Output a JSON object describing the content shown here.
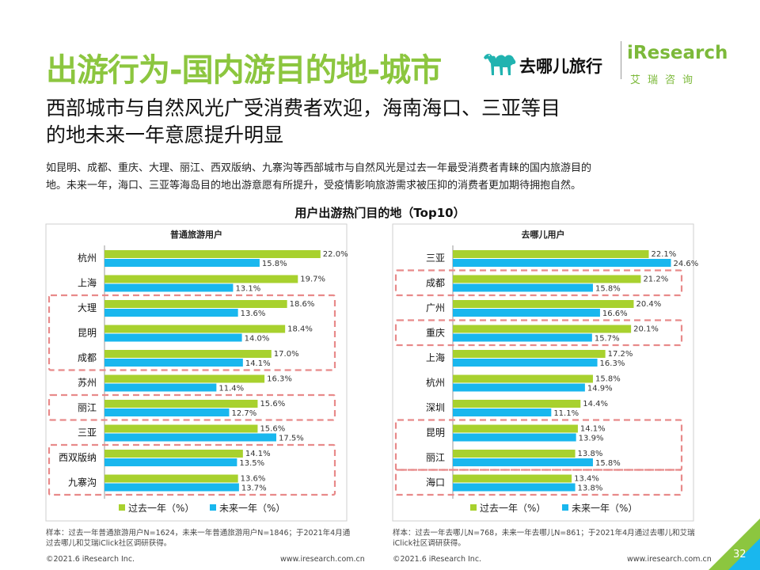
{
  "header": {
    "title": "出游行为-国内游目的地-城市",
    "brand_qunar": "去哪儿旅行",
    "brand_iresearch": "iResearch",
    "brand_iresearch_cn": "艾瑞咨询"
  },
  "headline": {
    "line1": "西部城市与自然风光广受消费者欢迎，海南海口、三亚等目",
    "line2": "的地未来一年意愿提升明显"
  },
  "description": {
    "line1": "如昆明、成都、重庆、大理、丽江、西双版纳、九寨沟等西部城市与自然风光是过去一年最受消费者青睐的国内旅游目的",
    "line2": "地。未来一年，海口、三亚等海岛目的地出游意愿有所提升，受疫情影响旅游需求被压抑的消费者更加期待拥抱自然。"
  },
  "chart_title": "用户出游热门目的地（Top10）",
  "colors": {
    "past": "#a8d12e",
    "future": "#19b7ee",
    "highlight": "#e88a8a",
    "accent": "#8cc63f"
  },
  "chart_data": [
    {
      "type": "bar",
      "orientation": "horizontal",
      "title": "普通旅游用户",
      "categories": [
        "杭州",
        "上海",
        "大理",
        "昆明",
        "成都",
        "苏州",
        "丽江",
        "三亚",
        "西双版纳",
        "九寨沟"
      ],
      "series": [
        {
          "name": "过去一年（%）",
          "values": [
            22.0,
            19.7,
            18.6,
            18.4,
            17.0,
            16.3,
            15.6,
            15.6,
            14.1,
            13.6
          ]
        },
        {
          "name": "未来一年（%）",
          "values": [
            15.8,
            13.1,
            13.6,
            14.0,
            14.1,
            11.4,
            12.7,
            17.5,
            13.5,
            13.7
          ]
        }
      ],
      "value_labels_past": [
        "22.0%",
        "19.7%",
        "18.6%",
        "18.4%",
        "17.0%",
        "16.3%",
        "15.6%",
        "15.6%",
        "14.1%",
        "13.6%"
      ],
      "value_labels_future": [
        "15.8%",
        "13.1%",
        "13.6%",
        "14.0%",
        "14.1%",
        "11.4%",
        "12.7%",
        "17.5%",
        "13.5%",
        "13.7%"
      ],
      "highlighted_groups": [
        [
          2,
          4
        ],
        [
          6,
          6
        ],
        [
          8,
          9
        ]
      ],
      "xlim": [
        0,
        25
      ],
      "legend": "bottom",
      "source": "样本：过去一年普通旅游用户N=1624，未来一年普通旅游用户N=1846；于2021年4月通",
      "source_line2": "过去哪儿和艾瑞iClick社区调研获得。"
    },
    {
      "type": "bar",
      "orientation": "horizontal",
      "title": "去哪儿用户",
      "categories": [
        "三亚",
        "成都",
        "广州",
        "重庆",
        "上海",
        "杭州",
        "深圳",
        "昆明",
        "丽江",
        "海口"
      ],
      "series": [
        {
          "name": "过去一年（%）",
          "values": [
            22.1,
            21.2,
            20.4,
            20.1,
            17.2,
            15.8,
            14.4,
            14.1,
            13.8,
            13.4
          ]
        },
        {
          "name": "未来一年（%）",
          "values": [
            24.6,
            15.8,
            16.6,
            15.7,
            16.3,
            14.9,
            11.1,
            13.9,
            15.8,
            13.8
          ]
        }
      ],
      "value_labels_past": [
        "22.1%",
        "21.2%",
        "20.4%",
        "20.1%",
        "17.2%",
        "15.8%",
        "14.4%",
        "14.1%",
        "13.8%",
        "13.4%"
      ],
      "value_labels_future": [
        "24.6%",
        "15.8%",
        "16.6%",
        "15.7%",
        "16.3%",
        "14.9%",
        "11.1%",
        "13.9%",
        "15.8%",
        "13.8%"
      ],
      "highlighted_groups": [
        [
          1,
          1
        ],
        [
          3,
          3
        ],
        [
          7,
          8
        ],
        [
          9,
          9
        ]
      ],
      "xlim": [
        0,
        25
      ],
      "legend": "bottom",
      "source": "样本：过去一年去哪儿N=768，未来一年去哪儿N=861；于2021年4月通过去哪儿和艾瑞",
      "source_line2": "iClick社区调研获得。"
    }
  ],
  "footer": {
    "copyright_left": "©2021.6 iResearch Inc.",
    "site_left": "www.iresearch.com.cn",
    "copyright_right": "©2021.6 iResearch Inc.",
    "site_right": "www.iresearch.com.cn",
    "page_number": "32"
  }
}
